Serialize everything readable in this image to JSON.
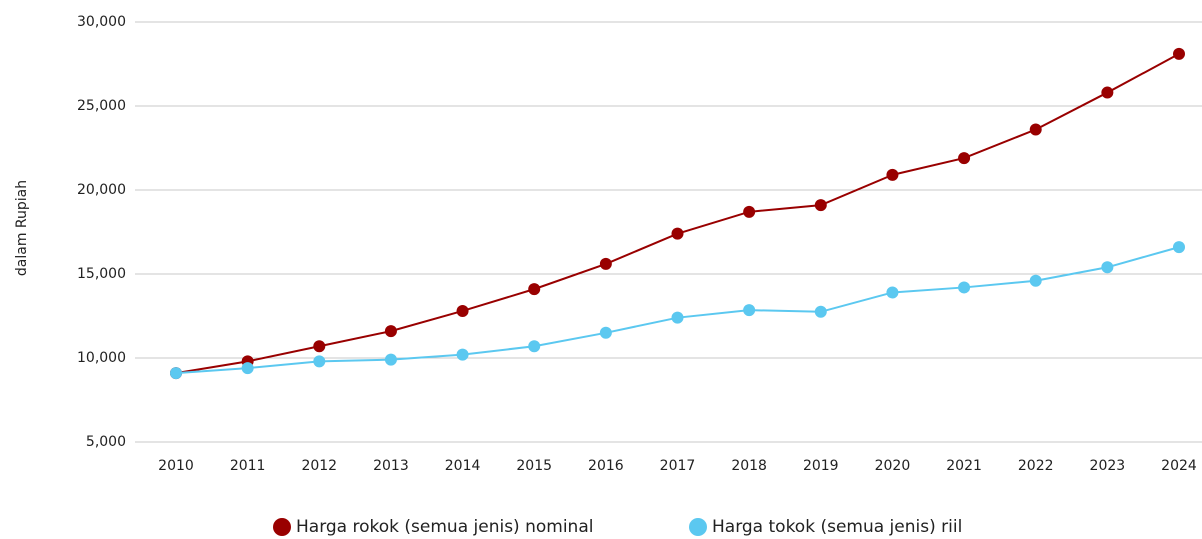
{
  "chart_data": {
    "type": "line",
    "y_label": "dalam Rupiah",
    "categories": [
      "2010",
      "2011",
      "2012",
      "2013",
      "2014",
      "2015",
      "2016",
      "2017",
      "2018",
      "2019",
      "2020",
      "2021",
      "2022",
      "2023",
      "2024"
    ],
    "series": [
      {
        "name": "Harga rokok (semua jenis) nominal",
        "color": "#990000",
        "values": [
          9100,
          9800,
          10700,
          11600,
          12800,
          14100,
          15600,
          17400,
          18700,
          19100,
          20900,
          21900,
          23600,
          25800,
          28100
        ]
      },
      {
        "name": "Harga tokok (semua jenis) riil",
        "color": "#5bc8f0",
        "values": [
          9100,
          9400,
          9800,
          9900,
          10200,
          10700,
          11500,
          12400,
          12850,
          12750,
          13900,
          14200,
          14600,
          15400,
          16600
        ]
      }
    ],
    "ylim": [
      5000,
      30000
    ],
    "yticks": [
      {
        "value": 5000,
        "label": "5,000"
      },
      {
        "value": 10000,
        "label": "10,000"
      },
      {
        "value": 15000,
        "label": "15,000"
      },
      {
        "value": 20000,
        "label": "20,000"
      },
      {
        "value": 25000,
        "label": "25,000"
      },
      {
        "value": 30000,
        "label": "30,000"
      }
    ],
    "grid": true,
    "legend": "bottom"
  }
}
